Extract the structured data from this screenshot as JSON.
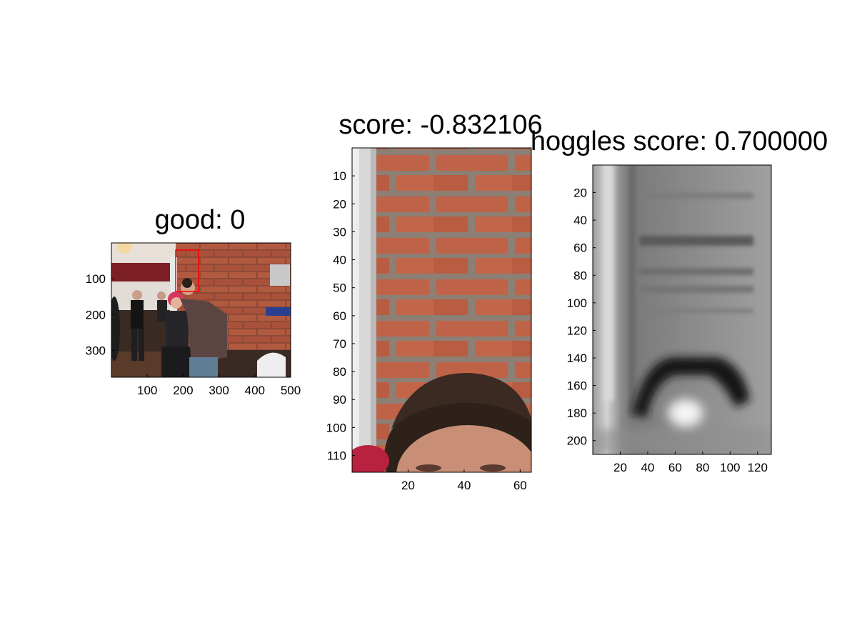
{
  "chart_data": [
    {
      "type": "image",
      "title": "good: 0",
      "xticks": [
        100,
        200,
        300,
        400,
        500
      ],
      "yticks": [
        100,
        200,
        300
      ],
      "xlim": [
        0,
        500
      ],
      "ylim": [
        0,
        375
      ]
    },
    {
      "type": "image",
      "title": "score: -0.832106",
      "xticks": [
        20,
        40,
        60
      ],
      "yticks": [
        10,
        20,
        30,
        40,
        50,
        60,
        70,
        80,
        90,
        100,
        110
      ],
      "xlim": [
        0,
        64
      ],
      "ylim": [
        0,
        116
      ]
    },
    {
      "type": "heatmap",
      "title": "hoggles score: 0.700000",
      "xticks": [
        20,
        40,
        60,
        80,
        100,
        120
      ],
      "yticks": [
        20,
        40,
        60,
        80,
        100,
        120,
        140,
        160,
        180,
        200
      ],
      "xlim": [
        0,
        130
      ],
      "ylim": [
        0,
        210
      ],
      "colormap": "gray"
    }
  ],
  "colors": {
    "brick": "#b5543a",
    "mortar": "#8a7f76",
    "wall_white": "#dcdcdc",
    "hair": "#2a1d16",
    "skin": "#d9a88a",
    "bbox": "#ff0000"
  }
}
